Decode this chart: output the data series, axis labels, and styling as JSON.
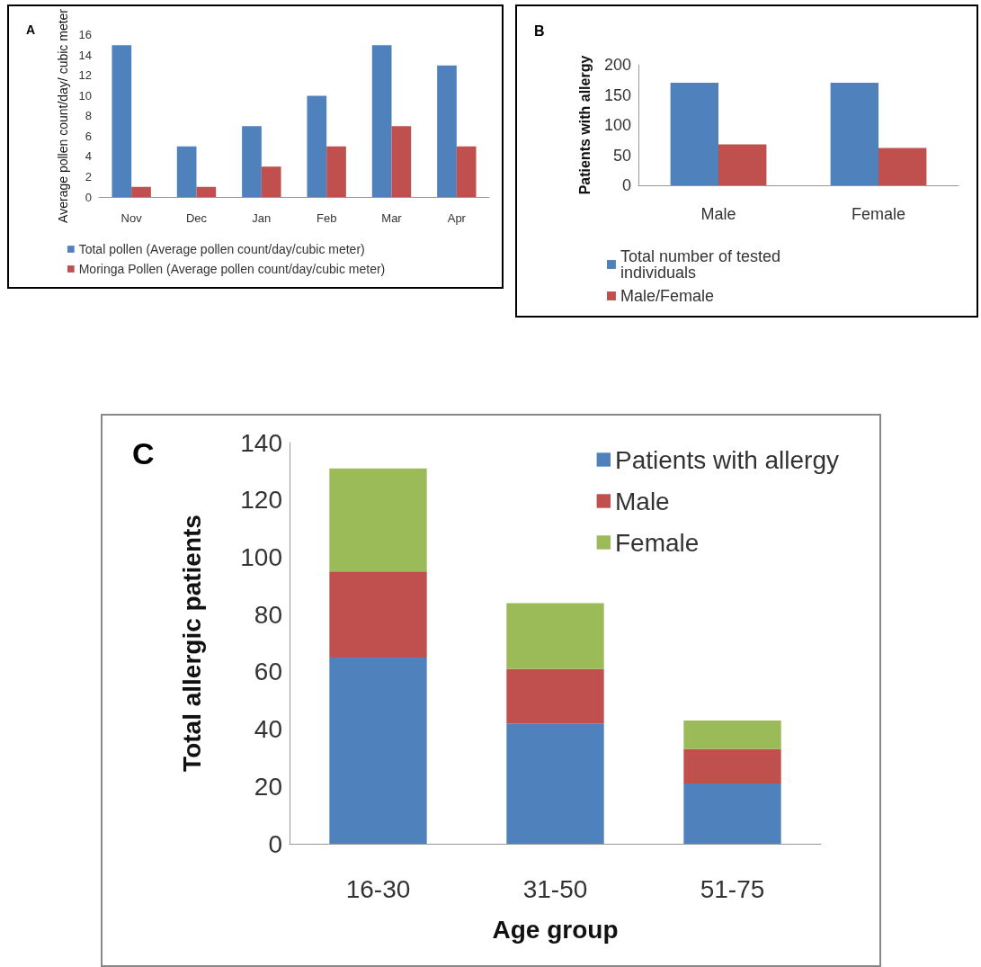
{
  "chart_data": [
    {
      "type": "bar",
      "title": "A",
      "ylabel": "Average pollen count/day/ cubic meter",
      "categories": [
        "Nov",
        "Dec",
        "Jan",
        "Feb",
        "Mar",
        "Apr"
      ],
      "series": [
        {
          "name": "Total pollen (Average pollen count/day/cubic meter)",
          "color": "#4f81bd",
          "values": [
            15,
            5,
            7,
            10,
            15,
            13
          ]
        },
        {
          "name": "Moringa Pollen (Average pollen count/day/cubic meter)",
          "color": "#c0504d",
          "values": [
            1,
            1,
            3,
            5,
            7,
            5
          ]
        }
      ],
      "ylim": [
        0,
        16
      ],
      "yticks": [
        0,
        2,
        4,
        6,
        8,
        10,
        12,
        14,
        16
      ],
      "grid": false,
      "legend": "bottom"
    },
    {
      "type": "bar",
      "title": "B",
      "ylabel": "Patients with allergy",
      "categories": [
        "Male",
        "Female"
      ],
      "series": [
        {
          "name": "Total number of tested individuals",
          "color": "#4f81bd",
          "values": [
            170,
            170
          ]
        },
        {
          "name": "Male/Female",
          "color": "#c0504d",
          "values": [
            68,
            62
          ]
        }
      ],
      "ylim": [
        0,
        200
      ],
      "yticks": [
        0,
        50,
        100,
        150,
        200
      ],
      "grid": false,
      "legend": "bottom"
    },
    {
      "type": "bar",
      "title": "C",
      "xlabel": "Age group",
      "ylabel": "Total allergic patients",
      "categories": [
        "16-30",
        "31-50",
        "51-75"
      ],
      "stacked": true,
      "series": [
        {
          "name": "Patients with allergy",
          "color": "#4f81bd",
          "values": [
            65,
            42,
            21
          ]
        },
        {
          "name": "Male",
          "color": "#c0504d",
          "values": [
            30,
            19,
            12
          ]
        },
        {
          "name": "Female",
          "color": "#9bbb59",
          "values": [
            36,
            23,
            10
          ]
        }
      ],
      "ylim": [
        0,
        140
      ],
      "yticks": [
        0,
        20,
        40,
        60,
        80,
        100,
        120,
        140
      ],
      "grid": false,
      "legend": "top right"
    }
  ]
}
